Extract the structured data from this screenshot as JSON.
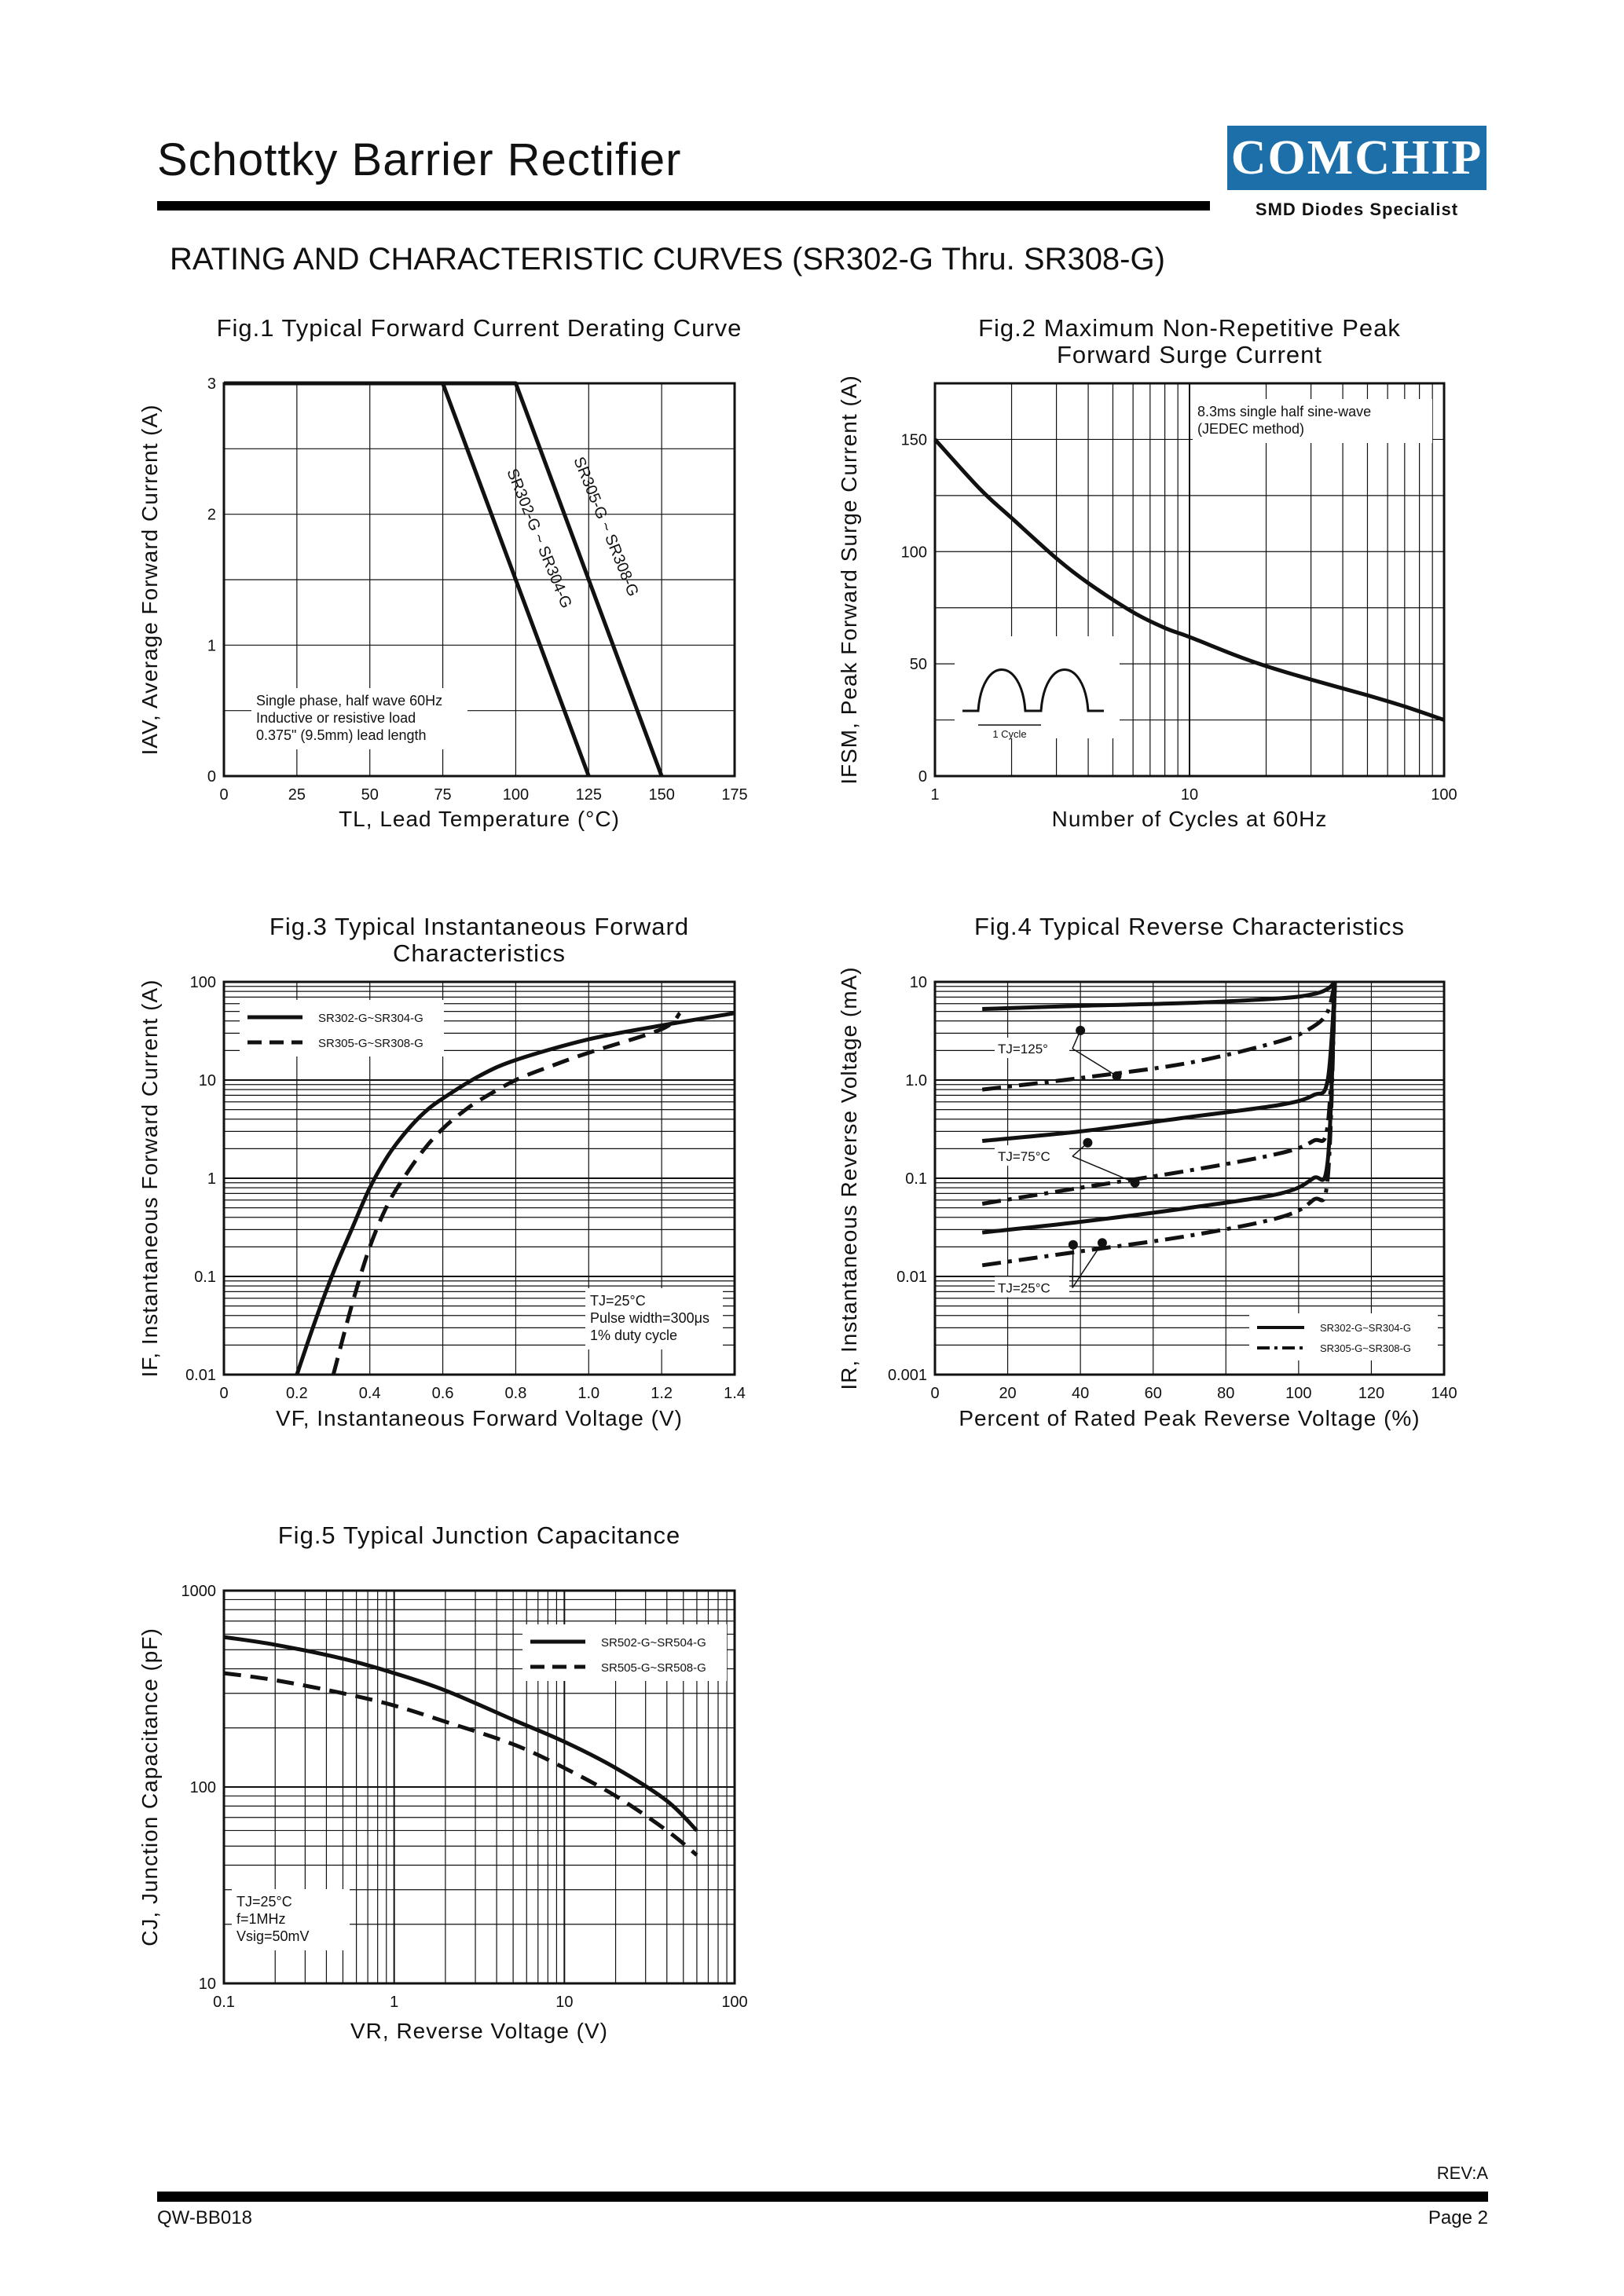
{
  "header": {
    "title": "Schottky Barrier Rectifier",
    "logo_text": "COMCHIP",
    "logo_tagline": "SMD Diodes Specialist",
    "section_title": "RATING AND CHARACTERISTIC CURVES (SR302-G Thru. SR308-G)"
  },
  "footer": {
    "revision": "REV:A",
    "doc_number": "QW-BB018",
    "page": "Page 2"
  },
  "colors": {
    "logo_bg": "#1c6fa8",
    "ink": "#111111"
  },
  "chart_data": [
    {
      "id": "fig1",
      "type": "line",
      "title": "Fig.1 Typical Forward Current Derating Curve",
      "xlabel": "TL, Lead Temperature (°C)",
      "ylabel": "IAV, Average Forward Current (A)",
      "xlim": [
        0,
        175
      ],
      "ylim": [
        0,
        3
      ],
      "xticks": [
        0,
        25,
        50,
        75,
        100,
        125,
        150,
        175
      ],
      "yticks": [
        0,
        1,
        2,
        3
      ],
      "series": [
        {
          "name": "SR302-G ~ SR304-G",
          "style": "solid",
          "x": [
            0,
            75,
            125
          ],
          "y": [
            3,
            3,
            0
          ]
        },
        {
          "name": "SR305-G ~ SR308-G",
          "style": "solid",
          "x": [
            0,
            100,
            150
          ],
          "y": [
            3,
            3,
            0
          ]
        }
      ],
      "annotation": [
        "Single phase, half wave 60Hz",
        "Inductive or resistive load",
        "0.375\" (9.5mm) lead length"
      ]
    },
    {
      "id": "fig2",
      "type": "line",
      "xscale": "log",
      "title": [
        "Fig.2 Maximum Non-Repetitive Peak",
        "Forward Surge Current"
      ],
      "xlabel": "Number of Cycles at 60Hz",
      "ylabel": "IFSM, Peak Forward Surge Current (A)",
      "xlim": [
        1,
        100
      ],
      "ylim": [
        0,
        175
      ],
      "xticks": [
        1,
        10,
        100
      ],
      "yticks": [
        0,
        50,
        100,
        150
      ],
      "series": [
        {
          "name": "IFSM",
          "style": "solid",
          "x": [
            1,
            1.5,
            2,
            3,
            4,
            6,
            8,
            10,
            15,
            20,
            30,
            50,
            70,
            100
          ],
          "y": [
            150,
            128,
            115,
            97,
            86,
            73,
            66,
            62,
            54,
            49,
            43,
            36,
            31,
            25
          ]
        }
      ],
      "annotation": [
        "8.3ms single half sine-wave",
        "(JEDEC method)"
      ],
      "inset_label": "1 Cycle"
    },
    {
      "id": "fig3",
      "type": "line",
      "yscale": "log",
      "title": [
        "Fig.3 Typical Instantaneous Forward",
        "Characteristics"
      ],
      "xlabel": "VF, Instantaneous Forward Voltage (V)",
      "ylabel": "IF, Instantaneous Forward Current (A)",
      "xlim": [
        0,
        1.4
      ],
      "ylim": [
        0.01,
        100
      ],
      "xticks": [
        0,
        0.2,
        0.4,
        0.6,
        0.8,
        1.0,
        1.2,
        1.4
      ],
      "xtick_labels": [
        "0",
        "0.2",
        "0.4",
        "0.6",
        "0.8",
        "1.0",
        "1.2",
        "1.4"
      ],
      "yticks": [
        0.01,
        0.1,
        1,
        10,
        100
      ],
      "ytick_labels": [
        "0.01",
        "0.1",
        "1",
        "10",
        "100"
      ],
      "series": [
        {
          "name": "SR302-G~SR304-G",
          "style": "solid",
          "x": [
            0.2,
            0.25,
            0.3,
            0.35,
            0.4,
            0.45,
            0.5,
            0.55,
            0.6,
            0.7,
            0.8,
            1.0,
            1.2,
            1.4
          ],
          "y": [
            0.01,
            0.035,
            0.11,
            0.3,
            0.8,
            1.7,
            3.0,
            4.7,
            6.5,
            11,
            16,
            26,
            36,
            48
          ]
        },
        {
          "name": "SR305-G~SR308-G",
          "style": "dashed",
          "x": [
            0.3,
            0.35,
            0.4,
            0.45,
            0.5,
            0.55,
            0.6,
            0.65,
            0.7,
            0.8,
            0.9,
            1.0,
            1.2,
            1.25
          ],
          "y": [
            0.01,
            0.05,
            0.2,
            0.55,
            1.1,
            2.0,
            3.2,
            4.6,
            6.2,
            10,
            14,
            19,
            33,
            48
          ]
        }
      ],
      "annotation": [
        "TJ=25°C",
        "Pulse width=300μs",
        "1% duty cycle"
      ]
    },
    {
      "id": "fig4",
      "type": "line",
      "yscale": "log",
      "title": "Fig.4 Typical Reverse Characteristics",
      "xlabel": "Percent of Rated Peak Reverse Voltage (%)",
      "ylabel": "IR, Instantaneous Reverse Voltage (mA)",
      "xlim": [
        0,
        140
      ],
      "ylim": [
        0.001,
        10
      ],
      "xticks": [
        0,
        20,
        40,
        60,
        80,
        100,
        120,
        140
      ],
      "yticks": [
        0.001,
        0.01,
        0.1,
        1,
        10
      ],
      "ytick_labels": [
        "0.001",
        "0.01",
        "0.1",
        "1.0",
        "10"
      ],
      "series": [
        {
          "name": "SR302-G~SR304-G TJ=125°C",
          "style": "solid",
          "x": [
            13,
            40,
            70,
            95,
            104,
            108,
            110
          ],
          "y": [
            5.3,
            5.7,
            6.1,
            6.8,
            7.5,
            8.5,
            10
          ]
        },
        {
          "name": "SR305-G~SR308-G TJ=125°C",
          "style": "dashdot",
          "x": [
            13,
            40,
            70,
            95,
            104,
            108,
            110
          ],
          "y": [
            0.8,
            1.05,
            1.5,
            2.5,
            3.5,
            5.0,
            10
          ]
        },
        {
          "name": "SR302-G~SR304-G TJ=75°C",
          "style": "solid",
          "x": [
            13,
            40,
            70,
            95,
            104,
            108,
            110
          ],
          "y": [
            0.24,
            0.3,
            0.42,
            0.56,
            0.7,
            1.0,
            10
          ]
        },
        {
          "name": "SR305-G~SR308-G TJ=75°C",
          "style": "dashdot",
          "x": [
            13,
            40,
            70,
            95,
            104,
            108,
            110
          ],
          "y": [
            0.055,
            0.08,
            0.12,
            0.18,
            0.24,
            0.35,
            10
          ]
        },
        {
          "name": "SR302-G~SR304-G TJ=25°C",
          "style": "solid",
          "x": [
            13,
            40,
            70,
            95,
            104,
            108,
            110
          ],
          "y": [
            0.028,
            0.036,
            0.05,
            0.07,
            0.1,
            0.15,
            10
          ]
        },
        {
          "name": "SR305-G~SR308-G TJ=25°C",
          "style": "dashdot",
          "x": [
            13,
            40,
            70,
            95,
            104,
            108,
            110
          ],
          "y": [
            0.013,
            0.018,
            0.026,
            0.04,
            0.06,
            0.1,
            10
          ]
        }
      ],
      "temp_labels": [
        "TJ=125°",
        "TJ=75°C",
        "TJ=25°C"
      ],
      "legend": [
        {
          "name": "SR302-G~SR304-G",
          "style": "solid"
        },
        {
          "name": "SR305-G~SR308-G",
          "style": "dashdot"
        }
      ]
    },
    {
      "id": "fig5",
      "type": "line",
      "xscale": "log",
      "yscale": "log",
      "title": "Fig.5 Typical Junction Capacitance",
      "xlabel": "VR, Reverse Voltage (V)",
      "ylabel": "CJ, Junction Capacitance (pF)",
      "xlim": [
        0.1,
        100
      ],
      "ylim": [
        10,
        1000
      ],
      "xticks": [
        0.1,
        1,
        10,
        100
      ],
      "xtick_labels": [
        "0.1",
        "1",
        "10",
        "100"
      ],
      "yticks": [
        10,
        100,
        1000
      ],
      "ytick_labels": [
        "10",
        "100",
        "1000"
      ],
      "series": [
        {
          "name": "SR502-G~SR504-G",
          "style": "solid",
          "x": [
            0.1,
            0.2,
            0.5,
            1,
            2,
            5,
            10,
            20,
            40,
            60
          ],
          "y": [
            580,
            530,
            450,
            380,
            310,
            220,
            170,
            125,
            85,
            60
          ]
        },
        {
          "name": "SR505-G~SR508-G",
          "style": "dashed",
          "x": [
            0.1,
            0.2,
            0.5,
            1,
            2,
            5,
            10,
            20,
            40,
            60
          ],
          "y": [
            380,
            350,
            300,
            260,
            215,
            165,
            125,
            90,
            60,
            45
          ]
        }
      ],
      "annotation": [
        "TJ=25°C",
        "f=1MHz",
        "Vsig=50mV"
      ]
    }
  ]
}
